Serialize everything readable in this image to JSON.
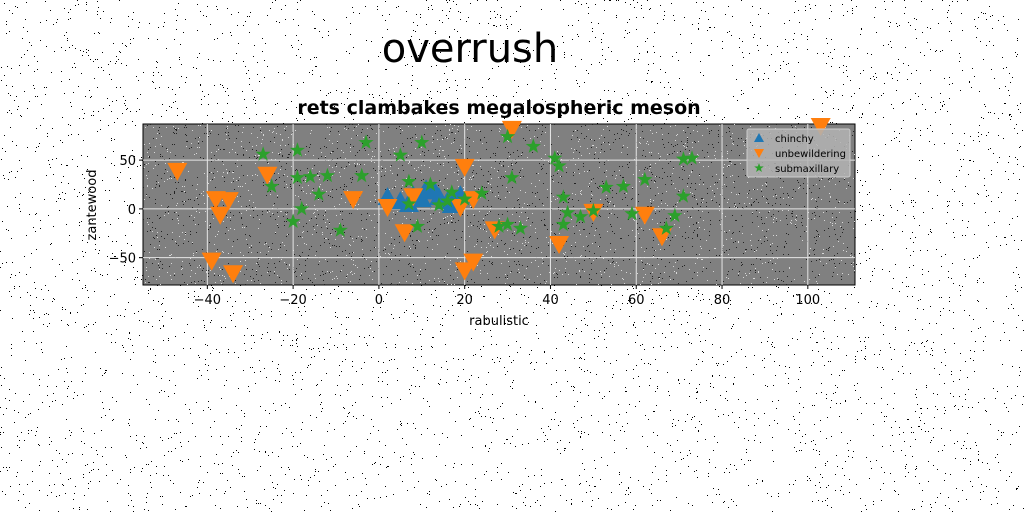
{
  "figure": {
    "suptitle": "overrush"
  },
  "chart_data": {
    "type": "scatter",
    "title": "rets clambakes megalospheric meson",
    "xlabel": "rabulistic",
    "ylabel": "zantewood",
    "xlim": [
      -55,
      111
    ],
    "ylim": [
      -78,
      87
    ],
    "xticks": [
      -40,
      -20,
      0,
      20,
      40,
      60,
      80,
      100
    ],
    "yticks": [
      -50,
      0,
      50
    ],
    "grid": true,
    "legend_position": "top-right",
    "plot_background": "#808080",
    "series": [
      {
        "name": "chinchy",
        "marker": "triangle-up",
        "color": "#1f77b4",
        "points": [
          [
            2,
            12
          ],
          [
            5,
            8
          ],
          [
            7,
            5
          ],
          [
            8,
            14
          ],
          [
            10,
            10
          ],
          [
            11,
            20
          ],
          [
            13,
            18
          ],
          [
            14,
            12
          ],
          [
            16,
            8
          ],
          [
            17,
            4
          ],
          [
            18,
            10
          ],
          [
            19,
            14
          ]
        ]
      },
      {
        "name": "unbewildering",
        "marker": "triangle-down",
        "color": "#ff7f0e",
        "points": [
          [
            -47,
            39
          ],
          [
            -38,
            10
          ],
          [
            -37,
            -6
          ],
          [
            -35,
            9
          ],
          [
            -26,
            35
          ],
          [
            -39,
            -53
          ],
          [
            -34,
            -66
          ],
          [
            -6,
            10
          ],
          [
            2,
            2
          ],
          [
            6,
            -24
          ],
          [
            8,
            13
          ],
          [
            19,
            2
          ],
          [
            20,
            43
          ],
          [
            22,
            10
          ],
          [
            20,
            -63
          ],
          [
            22,
            -54
          ],
          [
            27,
            -21
          ],
          [
            31,
            82
          ],
          [
            42,
            -36
          ],
          [
            50,
            -3
          ],
          [
            62,
            -6
          ],
          [
            66,
            -28
          ],
          [
            103,
            85
          ]
        ]
      },
      {
        "name": "submaxillary",
        "marker": "star",
        "color": "#2ca02c",
        "points": [
          [
            -27,
            56
          ],
          [
            -25,
            23
          ],
          [
            -20,
            -13
          ],
          [
            -19,
            60
          ],
          [
            -19,
            32
          ],
          [
            -18,
            0
          ],
          [
            -16,
            33
          ],
          [
            -14,
            15
          ],
          [
            -12,
            34
          ],
          [
            -9,
            -22
          ],
          [
            -4,
            34
          ],
          [
            -3,
            68
          ],
          [
            5,
            55
          ],
          [
            7,
            28
          ],
          [
            7,
            5
          ],
          [
            9,
            -18
          ],
          [
            10,
            68
          ],
          [
            12,
            25
          ],
          [
            14,
            4
          ],
          [
            16,
            8
          ],
          [
            17,
            17
          ],
          [
            20,
            10
          ],
          [
            24,
            16
          ],
          [
            28,
            -18
          ],
          [
            30,
            -16
          ],
          [
            30,
            74
          ],
          [
            31,
            32
          ],
          [
            33,
            -20
          ],
          [
            36,
            64
          ],
          [
            41,
            52
          ],
          [
            42,
            44
          ],
          [
            43,
            12
          ],
          [
            43,
            -16
          ],
          [
            44,
            -4
          ],
          [
            47,
            -8
          ],
          [
            50,
            -2
          ],
          [
            53,
            22
          ],
          [
            57,
            23
          ],
          [
            59,
            -5
          ],
          [
            62,
            30
          ],
          [
            67,
            -20
          ],
          [
            69,
            -7
          ],
          [
            71,
            13
          ],
          [
            71,
            51
          ],
          [
            73,
            52
          ]
        ]
      }
    ]
  }
}
